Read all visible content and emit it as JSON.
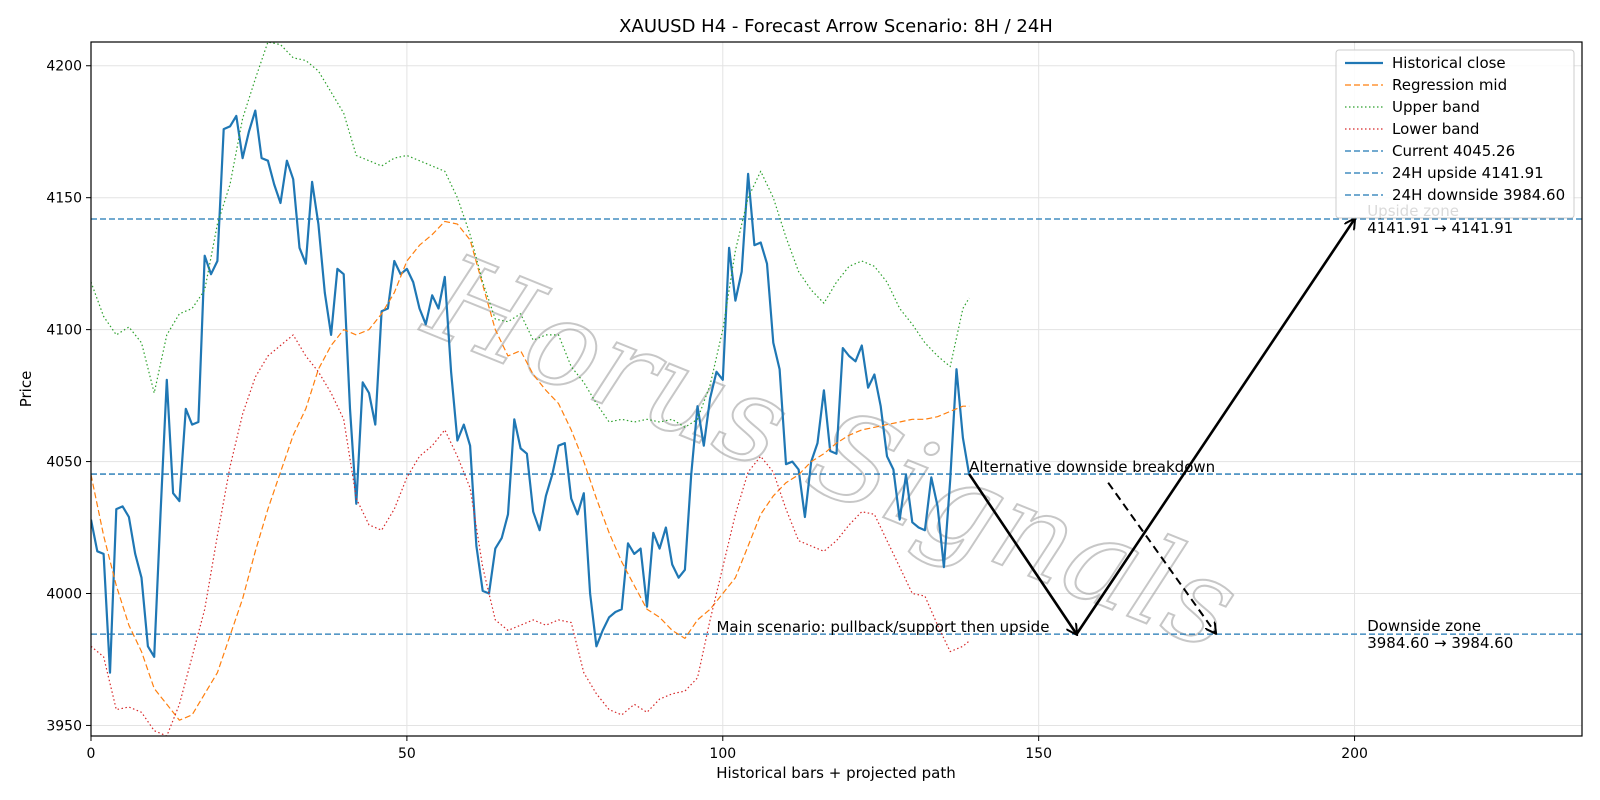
{
  "chart_data": {
    "type": "line",
    "title": "XAUUSD H4 - Forecast Arrow Scenario: 8H / 24H",
    "xlabel": "Historical bars + projected path",
    "ylabel": "Price",
    "xlim": [
      0,
      236
    ],
    "ylim": [
      3946,
      4209
    ],
    "x_ticks": [
      0,
      50,
      100,
      150,
      200
    ],
    "y_ticks": [
      3950,
      4000,
      4050,
      4100,
      4150,
      4200
    ],
    "grid": true,
    "legend_position": "top-right",
    "watermark": "Horus Signals",
    "colors": {
      "historical": "#1f77b4",
      "regression": "#ff7f0e",
      "upper": "#2ca02c",
      "lower": "#d62728",
      "hline": "#1f77b4",
      "arrow": "#000000"
    },
    "series": [
      {
        "name": "Historical close",
        "style": "solid",
        "x": [
          0,
          1,
          2,
          3,
          4,
          5,
          6,
          7,
          8,
          9,
          10,
          11,
          12,
          13,
          14,
          15,
          16,
          17,
          18,
          19,
          20,
          21,
          22,
          23,
          24,
          25,
          26,
          27,
          28,
          29,
          30,
          31,
          32,
          33,
          34,
          35,
          36,
          37,
          38,
          39,
          40,
          41,
          42,
          43,
          44,
          45,
          46,
          47,
          48,
          49,
          50,
          51,
          52,
          53,
          54,
          55,
          56,
          57,
          58,
          59,
          60,
          61,
          62,
          63,
          64,
          65,
          66,
          67,
          68,
          69,
          70,
          71,
          72,
          73,
          74,
          75,
          76,
          77,
          78,
          79,
          80,
          81,
          82,
          83,
          84,
          85,
          86,
          87,
          88,
          89,
          90,
          91,
          92,
          93,
          94,
          95,
          96,
          97,
          98,
          99,
          100,
          101,
          102,
          103,
          104,
          105,
          106,
          107,
          108,
          109,
          110,
          111,
          112,
          113,
          114,
          115,
          116,
          117,
          118,
          119,
          120,
          121,
          122,
          123,
          124,
          125,
          126,
          127,
          128,
          129,
          130,
          131,
          132,
          133,
          134,
          135,
          136,
          137,
          138,
          139
        ],
        "values": [
          4028,
          4016,
          4015,
          3970,
          4032,
          4033,
          4029,
          4015,
          4006,
          3980,
          3976,
          4030,
          4081,
          4038,
          4035,
          4070,
          4064,
          4065,
          4128,
          4121,
          4126,
          4176,
          4177,
          4181,
          4165,
          4175,
          4183,
          4165,
          4164,
          4155,
          4148,
          4164,
          4157,
          4131,
          4125,
          4156,
          4140,
          4114,
          4098,
          4123,
          4121,
          4070,
          4034,
          4080,
          4076,
          4064,
          4107,
          4108,
          4126,
          4121,
          4123,
          4118,
          4108,
          4102,
          4113,
          4108,
          4120,
          4084,
          4058,
          4064,
          4056,
          4018,
          4001,
          4000,
          4017,
          4021,
          4030,
          4066,
          4055,
          4053,
          4031,
          4024,
          4037,
          4045,
          4056,
          4057,
          4036,
          4030,
          4038,
          4000,
          3980,
          3986,
          3991,
          3993,
          3994,
          4019,
          4015,
          4017,
          3995,
          4023,
          4017,
          4025,
          4011,
          4006,
          4009,
          4045,
          4071,
          4056,
          4074,
          4084,
          4081,
          4131,
          4111,
          4122,
          4159,
          4132,
          4133,
          4125,
          4095,
          4085,
          4049,
          4050,
          4047,
          4029,
          4050,
          4057,
          4077,
          4054,
          4053,
          4093,
          4090,
          4088,
          4094,
          4078,
          4083,
          4071,
          4052,
          4047,
          4028,
          4045,
          4027,
          4025,
          4024,
          4044,
          4033,
          4010,
          4043,
          4085,
          4059,
          4045
        ]
      },
      {
        "name": "Regression mid",
        "style": "dashed",
        "x": [
          0,
          2,
          4,
          6,
          8,
          10,
          12,
          14,
          16,
          18,
          20,
          22,
          24,
          26,
          28,
          30,
          32,
          34,
          36,
          38,
          40,
          42,
          44,
          46,
          48,
          50,
          52,
          54,
          56,
          58,
          60,
          62,
          64,
          66,
          68,
          70,
          72,
          74,
          76,
          78,
          80,
          82,
          84,
          86,
          88,
          90,
          92,
          94,
          96,
          98,
          100,
          102,
          104,
          106,
          108,
          110,
          112,
          114,
          116,
          118,
          120,
          122,
          124,
          126,
          128,
          130,
          132,
          134,
          136,
          138,
          139
        ],
        "values": [
          4045,
          4022,
          4003,
          3988,
          3978,
          3964,
          3958,
          3952,
          3954,
          3962,
          3970,
          3984,
          3998,
          4016,
          4032,
          4046,
          4060,
          4070,
          4085,
          4094,
          4100,
          4098,
          4100,
          4106,
          4114,
          4126,
          4132,
          4136,
          4141,
          4140,
          4134,
          4117,
          4100,
          4090,
          4092,
          4083,
          4077,
          4072,
          4062,
          4050,
          4036,
          4023,
          4012,
          4003,
          3994,
          3991,
          3986,
          3983,
          3990,
          3994,
          4000,
          4006,
          4018,
          4030,
          4037,
          4042,
          4045,
          4050,
          4053,
          4057,
          4060,
          4062,
          4063,
          4064,
          4065,
          4066,
          4066,
          4067,
          4069,
          4071,
          4071
        ]
      },
      {
        "name": "Upper band",
        "style": "dotted",
        "x": [
          0,
          2,
          4,
          6,
          8,
          10,
          12,
          14,
          16,
          18,
          20,
          22,
          24,
          26,
          28,
          30,
          32,
          34,
          36,
          38,
          40,
          42,
          44,
          46,
          48,
          50,
          52,
          54,
          56,
          58,
          60,
          62,
          64,
          66,
          68,
          70,
          72,
          74,
          76,
          78,
          80,
          82,
          84,
          86,
          88,
          90,
          92,
          94,
          96,
          98,
          100,
          102,
          104,
          106,
          108,
          110,
          112,
          114,
          116,
          118,
          120,
          122,
          124,
          126,
          128,
          130,
          132,
          134,
          136,
          138,
          139
        ],
        "values": [
          4118,
          4105,
          4098,
          4101,
          4095,
          4076,
          4098,
          4106,
          4108,
          4115,
          4140,
          4155,
          4180,
          4195,
          4209,
          4208,
          4203,
          4202,
          4198,
          4190,
          4182,
          4166,
          4164,
          4162,
          4165,
          4166,
          4164,
          4162,
          4160,
          4150,
          4136,
          4118,
          4104,
          4103,
          4106,
          4096,
          4098,
          4098,
          4086,
          4080,
          4072,
          4065,
          4066,
          4065,
          4066,
          4065,
          4066,
          4063,
          4066,
          4079,
          4100,
          4130,
          4150,
          4160,
          4150,
          4135,
          4122,
          4115,
          4110,
          4118,
          4124,
          4126,
          4124,
          4118,
          4108,
          4102,
          4095,
          4090,
          4086,
          4108,
          4112
        ]
      },
      {
        "name": "Lower band",
        "style": "dotted",
        "x": [
          0,
          2,
          4,
          6,
          8,
          10,
          12,
          14,
          16,
          18,
          20,
          22,
          24,
          26,
          28,
          30,
          32,
          34,
          36,
          38,
          40,
          42,
          44,
          46,
          48,
          50,
          52,
          54,
          56,
          58,
          60,
          62,
          64,
          66,
          68,
          70,
          72,
          74,
          76,
          78,
          80,
          82,
          84,
          86,
          88,
          90,
          92,
          94,
          96,
          98,
          100,
          102,
          104,
          106,
          108,
          110,
          112,
          114,
          116,
          118,
          120,
          122,
          124,
          126,
          128,
          130,
          132,
          134,
          136,
          138,
          139
        ],
        "values": [
          3980,
          3976,
          3956,
          3957,
          3955,
          3948,
          3946,
          3958,
          3976,
          3994,
          4022,
          4048,
          4068,
          4082,
          4090,
          4094,
          4098,
          4090,
          4084,
          4076,
          4066,
          4036,
          4026,
          4024,
          4032,
          4044,
          4052,
          4056,
          4062,
          4052,
          4040,
          4010,
          3990,
          3986,
          3988,
          3990,
          3988,
          3990,
          3989,
          3970,
          3962,
          3956,
          3954,
          3958,
          3955,
          3960,
          3962,
          3963,
          3968,
          3990,
          4010,
          4030,
          4046,
          4052,
          4046,
          4032,
          4020,
          4018,
          4016,
          4020,
          4026,
          4031,
          4030,
          4020,
          4010,
          4000,
          3999,
          3988,
          3978,
          3980,
          3982
        ]
      }
    ],
    "hlines": [
      {
        "name": "Current 4045.26",
        "y": 4045.26,
        "style": "dashed"
      },
      {
        "name": "24H upside 4141.91",
        "y": 4141.91,
        "style": "dashed"
      },
      {
        "name": "24H downside 3984.60",
        "y": 3984.6,
        "style": "dashed"
      }
    ],
    "arrows": [
      {
        "from": [
          139,
          4045.26
        ],
        "to": [
          156,
          3984.6
        ],
        "style": "solid"
      },
      {
        "from": [
          156,
          3984.6
        ],
        "to": [
          200,
          4141.91
        ],
        "style": "solid"
      },
      {
        "from": [
          161,
          4042
        ],
        "to": [
          178,
          3985
        ],
        "style": "dashed"
      }
    ],
    "annotations": [
      {
        "id": "upside-zone",
        "text_line1": "Upside zone",
        "text_line2": "4141.91 → 4141.91",
        "x": 202,
        "y": 4141.91
      },
      {
        "id": "downside-zone",
        "text_line1": "Downside zone",
        "text_line2": "3984.60 → 3984.60",
        "x": 202,
        "y": 3984.6
      },
      {
        "id": "alternative",
        "text": "Alternative downside breakdown",
        "x": 139,
        "y": 4045.26
      },
      {
        "id": "main-scenario",
        "text": "Main scenario: pullback/support then upside",
        "x": 99,
        "y": 3984.6
      }
    ]
  }
}
